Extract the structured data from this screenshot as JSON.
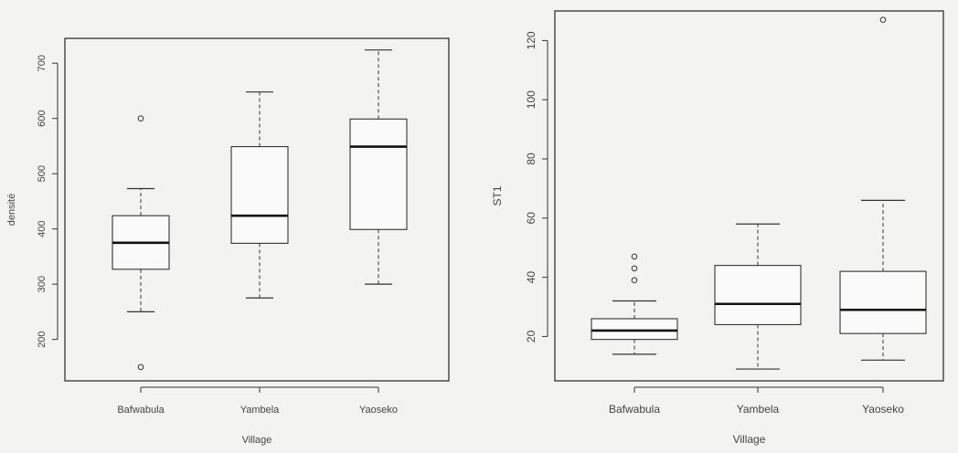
{
  "colors": {
    "background": "#f3f3f1",
    "ink": "#333333",
    "box_fill": "#fafafa"
  },
  "chart_data": [
    {
      "type": "box",
      "title": "",
      "xlabel": "Village",
      "ylabel": "densité",
      "ylim": [
        125,
        745
      ],
      "yticks": [
        200,
        300,
        400,
        500,
        600,
        700
      ],
      "grid": false,
      "legend": "none",
      "categories": [
        "Bafwabula",
        "Yambela",
        "Yaoseko"
      ],
      "boxes": [
        {
          "category": "Bafwabula",
          "whisker_low": 250,
          "q1": 327,
          "median": 375,
          "q3": 424,
          "whisker_high": 473,
          "outliers": [
            600,
            150
          ]
        },
        {
          "category": "Yambela",
          "whisker_low": 275,
          "q1": 374,
          "median": 424,
          "q3": 549,
          "whisker_high": 648,
          "outliers": []
        },
        {
          "category": "Yaoseko",
          "whisker_low": 300,
          "q1": 399,
          "median": 549,
          "q3": 599,
          "whisker_high": 724,
          "outliers": []
        }
      ]
    },
    {
      "type": "box",
      "title": "",
      "xlabel": "Village",
      "ylabel": "ST1",
      "ylim": [
        5,
        130
      ],
      "yticks": [
        20,
        40,
        60,
        80,
        100,
        120
      ],
      "grid": false,
      "legend": "none",
      "categories": [
        "Bafwabula",
        "Yambela",
        "Yaoseko"
      ],
      "boxes": [
        {
          "category": "Bafwabula",
          "whisker_low": 14,
          "q1": 19,
          "median": 22,
          "q3": 26,
          "whisker_high": 32,
          "outliers": [
            39,
            43,
            47
          ]
        },
        {
          "category": "Yambela",
          "whisker_low": 9,
          "q1": 24,
          "median": 31,
          "q3": 44,
          "whisker_high": 58,
          "outliers": []
        },
        {
          "category": "Yaoseko",
          "whisker_low": 12,
          "q1": 21,
          "median": 29,
          "q3": 42,
          "whisker_high": 66,
          "outliers": [
            127
          ]
        }
      ]
    }
  ]
}
